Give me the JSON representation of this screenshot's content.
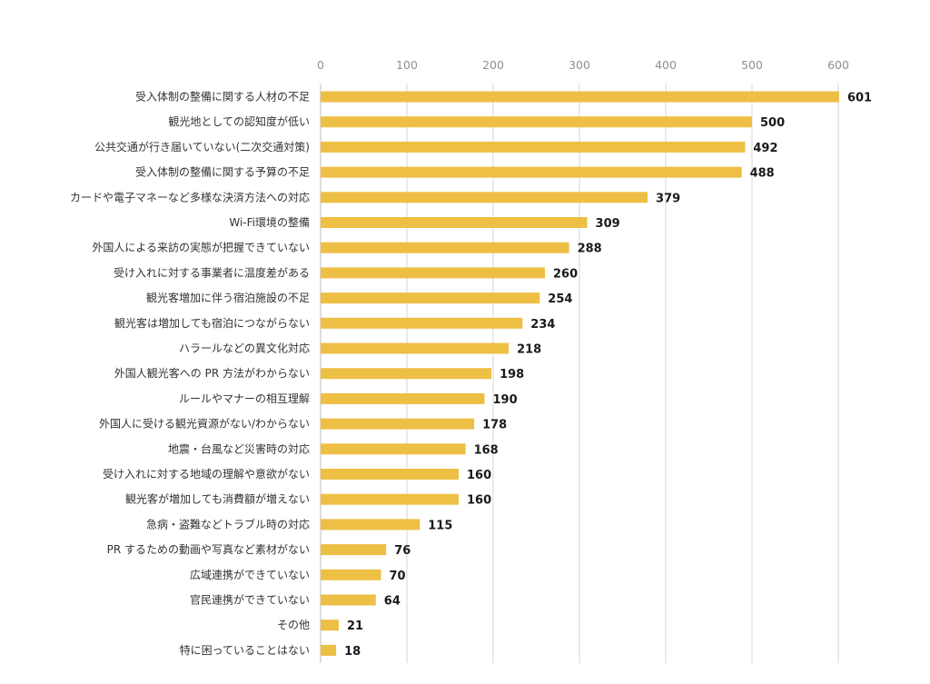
{
  "chart_data": {
    "type": "bar",
    "orientation": "horizontal",
    "xlim": [
      0,
      600
    ],
    "ticks": [
      "0",
      "100",
      "200",
      "300",
      "400",
      "500",
      "600"
    ],
    "tick_values": [
      0,
      100,
      200,
      300,
      400,
      500,
      600
    ],
    "grid": true,
    "bar_color": "#EDBF45",
    "categories": [
      "受入体制の整備に関する人材の不足",
      "観光地としての認知度が低い",
      "公共交通が行き届いていない(二次交通対策)",
      "受入体制の整備に関する予算の不足",
      "カードや電子マネーなど多様な決済方法への対応",
      "Wi-Fi環境の整備",
      "外国人による来訪の実態が把握できていない",
      "受け入れに対する事業者に温度差がある",
      "観光客増加に伴う宿泊施設の不足",
      "観光客は増加しても宿泊につながらない",
      "ハラールなどの異文化対応",
      "外国人観光客への PR 方法がわからない",
      "ルールやマナーの相互理解",
      "外国人に受ける観光資源がない/わからない",
      "地震・台風など災害時の対応",
      "受け入れに対する地域の理解や意欲がない",
      "観光客が増加しても消費額が増えない",
      "急病・盗難などトラブル時の対応",
      "PR するための動画や写真など素材がない",
      "広域連携ができていない",
      "官民連携ができていない",
      "その他",
      "特に困っていることはない"
    ],
    "values": [
      601,
      500,
      492,
      488,
      379,
      309,
      288,
      260,
      254,
      234,
      218,
      198,
      190,
      178,
      168,
      160,
      160,
      115,
      76,
      70,
      64,
      21,
      18
    ],
    "labels": [
      "601",
      "500",
      "492",
      "488",
      "379",
      "309",
      "288",
      "260",
      "254",
      "234",
      "218",
      "198",
      "190",
      "178",
      "168",
      "160",
      "160",
      "115",
      "76",
      "70",
      "64",
      "21",
      "18"
    ]
  }
}
